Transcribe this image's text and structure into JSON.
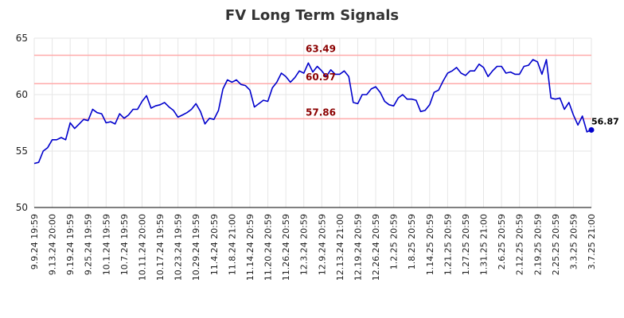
{
  "chart_data": {
    "type": "line",
    "title": "FV Long Term Signals",
    "xlabel": "",
    "ylabel": "",
    "ylim": [
      50,
      65
    ],
    "yticks": [
      50,
      55,
      60,
      65
    ],
    "grid": true,
    "line_color": "#0000cc",
    "level_color": "#ffaaaa",
    "level_label_color": "#8b0000",
    "x_tick_labels": [
      "9.9.24 19:59",
      "9.13.24 20:00",
      "9.19.24 19:59",
      "9.25.24 19:59",
      "10.1.24 19:59",
      "10.7.24 19:59",
      "10.11.24 20:00",
      "10.17.24 19:59",
      "10.23.24 19:59",
      "10.29.24 19:59",
      "11.4.24 20:59",
      "11.8.24 21:00",
      "11.14.24 20:59",
      "11.20.24 20:59",
      "11.26.24 20:59",
      "12.3.24 20:59",
      "12.9.24 20:59",
      "12.13.24 21:00",
      "12.19.24 20:59",
      "12.26.24 20:59",
      "1.2.25 20:59",
      "1.8.25 20:59",
      "1.14.25 20:59",
      "1.21.25 20:59",
      "1.27.25 20:59",
      "1.31.25 21:00",
      "2.6.25 20:59",
      "2.12.25 20:59",
      "2.19.25 20:59",
      "2.25.25 20:59",
      "3.3.25 20:59",
      "3.7.25 21:00"
    ],
    "levels": [
      {
        "value": 63.49,
        "label": "63.49"
      },
      {
        "value": 60.97,
        "label": "60.97"
      },
      {
        "value": 57.86,
        "label": "57.86"
      }
    ],
    "last_value_label": "56.87",
    "series": [
      {
        "values": [
          53.9,
          54.0,
          55.0,
          55.3,
          56.0,
          56.0,
          56.2,
          56.0,
          57.5,
          57.0,
          57.4,
          57.8,
          57.7,
          58.7,
          58.4,
          58.3,
          57.5,
          57.6,
          57.4,
          58.3,
          57.9,
          58.2,
          58.7,
          58.7,
          59.4,
          59.9,
          58.8,
          59.0,
          59.1,
          59.3,
          58.9,
          58.6,
          58.0,
          58.2,
          58.4,
          58.7,
          59.2,
          58.5,
          57.4,
          57.9,
          57.8,
          58.6,
          60.5,
          61.3,
          61.1,
          61.3,
          60.9,
          60.8,
          60.4,
          58.9,
          59.2,
          59.5,
          59.4,
          60.6,
          61.1,
          61.9,
          61.6,
          61.1,
          61.5,
          62.1,
          61.9,
          62.8,
          62.0,
          62.5,
          62.1,
          61.6,
          62.2,
          61.8,
          61.8,
          62.1,
          61.6,
          59.3,
          59.2,
          60.0,
          60.0,
          60.5,
          60.7,
          60.2,
          59.4,
          59.1,
          59.0,
          59.7,
          60.0,
          59.6,
          59.6,
          59.5,
          58.5,
          58.6,
          59.1,
          60.2,
          60.4,
          61.2,
          61.9,
          62.1,
          62.4,
          61.9,
          61.7,
          62.1,
          62.1,
          62.7,
          62.4,
          61.6,
          62.1,
          62.5,
          62.5,
          61.9,
          62.0,
          61.8,
          61.8,
          62.5,
          62.6,
          63.1,
          62.9,
          61.8,
          63.1,
          59.7,
          59.6,
          59.7,
          58.7,
          59.3,
          58.2,
          57.3,
          58.1,
          56.7,
          56.87
        ]
      }
    ]
  }
}
